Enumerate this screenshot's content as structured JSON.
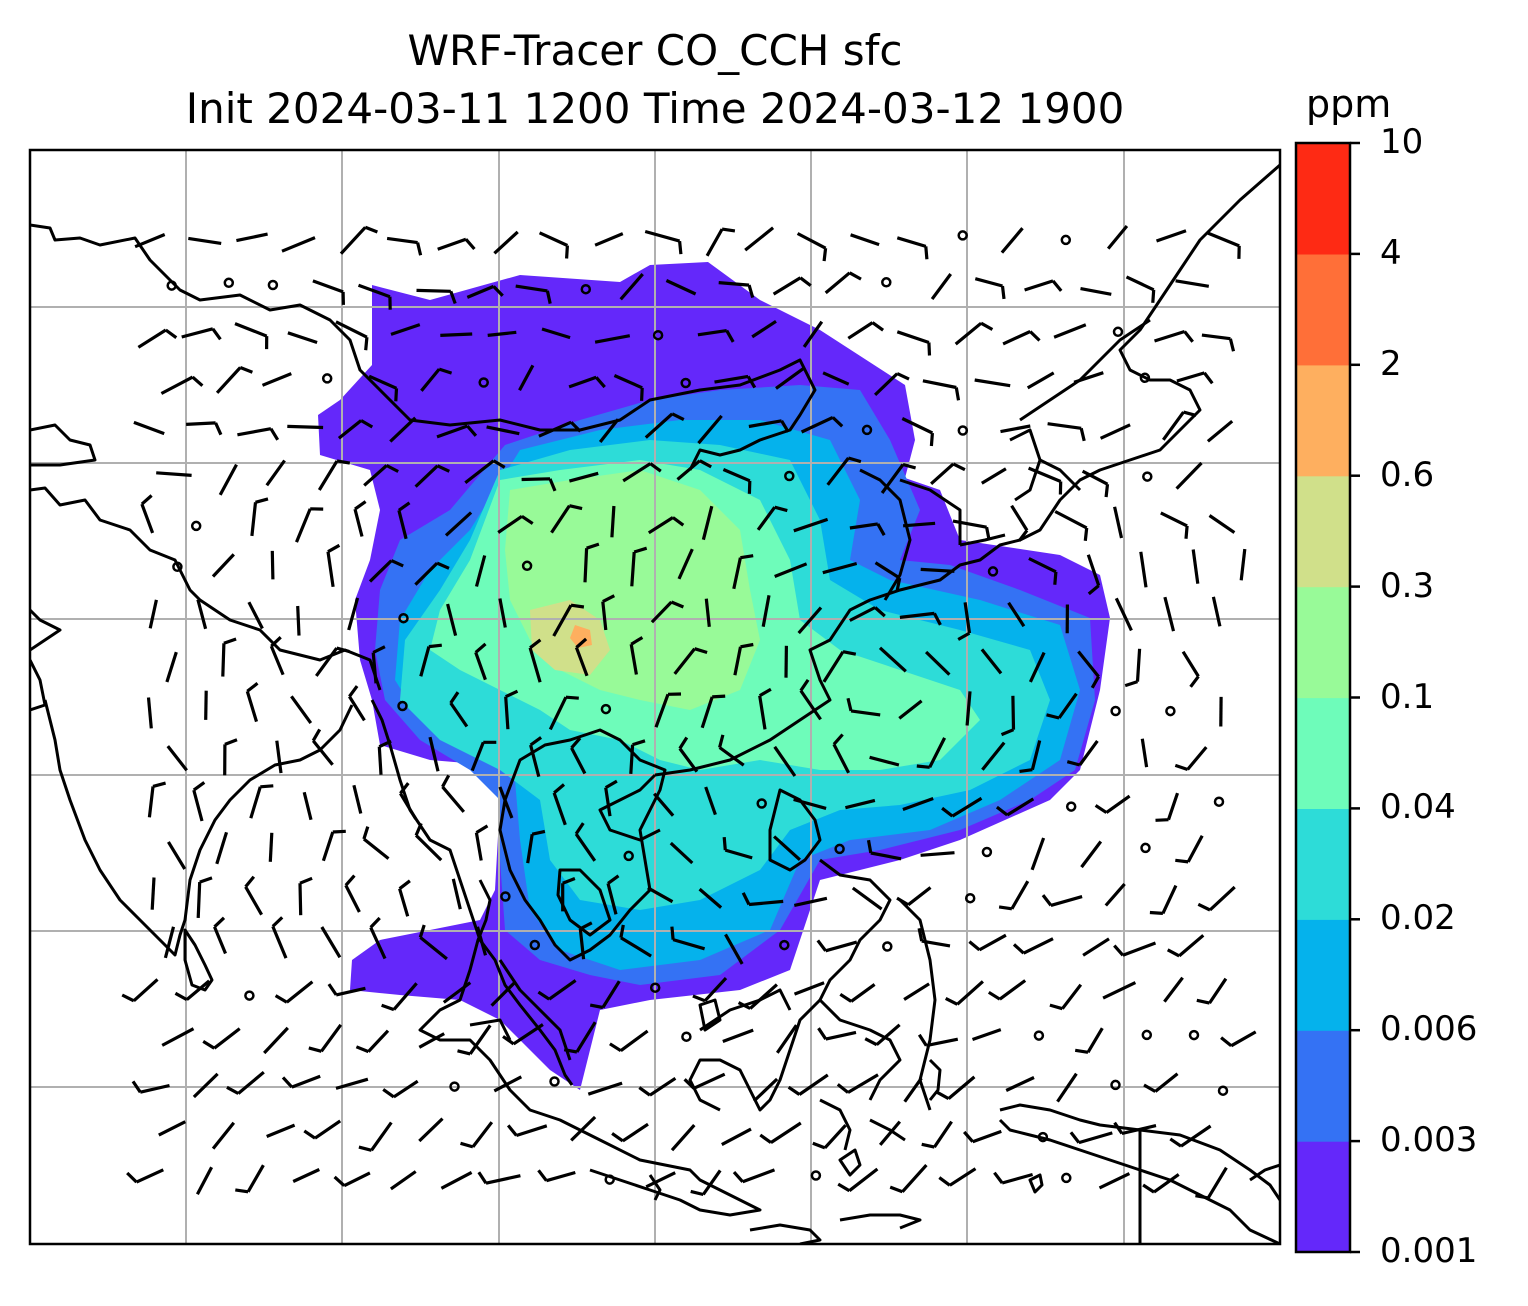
{
  "title": {
    "line1": "WRF-Tracer CO_CCH sfc",
    "line2": "Init 2024-03-11 1200 Time 2024-03-12 1900"
  },
  "colorbar": {
    "unit": "ppm",
    "ticks": [
      "0.001",
      "0.003",
      "0.006",
      "0.02",
      "0.04",
      "0.1",
      "0.3",
      "0.6",
      "2",
      "4",
      "10"
    ],
    "colors": [
      "#6428fa",
      "#3472f4",
      "#05b2ec",
      "#2ddcd8",
      "#6efcba",
      "#98fa98",
      "#d0e08a",
      "#feaf5f",
      "#ff6f38",
      "#fe2a14"
    ]
  },
  "map": {
    "gridlines": true,
    "coastlines": true,
    "overlay": "wind-barbs"
  }
}
